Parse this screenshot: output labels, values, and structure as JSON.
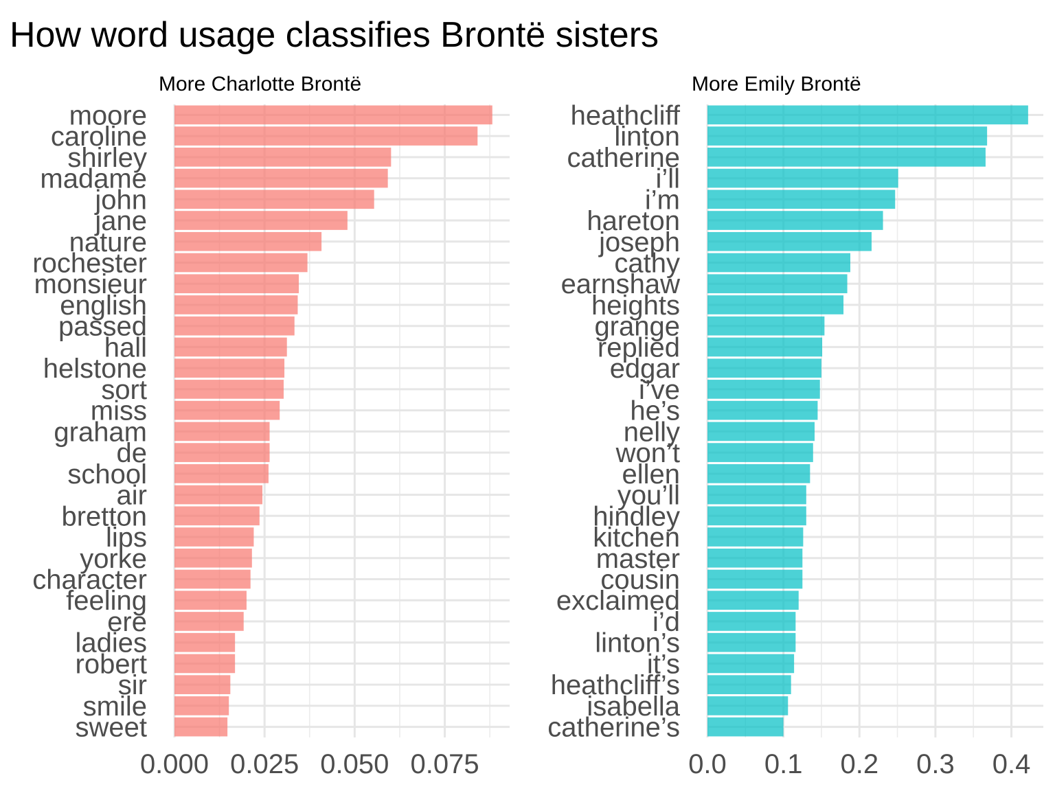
{
  "title": "How word usage classifies Brontë sisters",
  "colors": {
    "charlotte": "#F8766D",
    "emily": "#00BFC4",
    "bar_opacity": 0.7,
    "text": "#4d4d4d"
  },
  "chart_data": [
    {
      "type": "bar",
      "orientation": "horizontal",
      "title": "More Charlotte Brontë",
      "categories": [
        "moore",
        "caroline",
        "shirley",
        "madame",
        "john",
        "jane",
        "nature",
        "rochester",
        "monsieur",
        "english",
        "passed",
        "hall",
        "helstone",
        "sort",
        "miss",
        "graham",
        "de",
        "school",
        "air",
        "bretton",
        "lips",
        "yorke",
        "character",
        "feeling",
        "ere",
        "ladies",
        "robert",
        "sir",
        "smile",
        "sweet"
      ],
      "values": [
        0.0882,
        0.0841,
        0.0601,
        0.0592,
        0.0554,
        0.048,
        0.0408,
        0.0369,
        0.0345,
        0.0342,
        0.0333,
        0.0312,
        0.0305,
        0.0303,
        0.0292,
        0.0264,
        0.0264,
        0.0261,
        0.0244,
        0.0236,
        0.022,
        0.0215,
        0.0211,
        0.02,
        0.0192,
        0.0168,
        0.0168,
        0.0155,
        0.0151,
        0.0147
      ],
      "xlim": [
        0,
        0.093
      ],
      "xticks": [
        0,
        0.025,
        0.05,
        0.075
      ],
      "xtick_labels": [
        "0.000",
        "0.025",
        "0.050",
        "0.075"
      ],
      "minor_ticks": [
        0.0125,
        0.0375,
        0.0625,
        0.0875
      ],
      "grid": true,
      "color": "#F8766D"
    },
    {
      "type": "bar",
      "orientation": "horizontal",
      "title": "More Emily Brontë",
      "categories": [
        "heathcliff",
        "linton",
        "catherine",
        "i’ll",
        "i’m",
        "hareton",
        "joseph",
        "cathy",
        "earnshaw",
        "heights",
        "grange",
        "replied",
        "edgar",
        "i’ve",
        "he’s",
        "nelly",
        "won’t",
        "ellen",
        "you’ll",
        "hindley",
        "kitchen",
        "master",
        "cousin",
        "exclaimed",
        "i’d",
        "linton’s",
        "it’s",
        "heathcliff’s",
        "isabella",
        "catherine’s"
      ],
      "values": [
        0.422,
        0.368,
        0.366,
        0.251,
        0.247,
        0.231,
        0.216,
        0.188,
        0.184,
        0.179,
        0.154,
        0.151,
        0.15,
        0.148,
        0.145,
        0.141,
        0.139,
        0.135,
        0.13,
        0.13,
        0.126,
        0.125,
        0.125,
        0.12,
        0.116,
        0.116,
        0.114,
        0.11,
        0.106,
        0.1
      ],
      "xlim": [
        0,
        0.442
      ],
      "xticks": [
        0,
        0.1,
        0.2,
        0.3,
        0.4
      ],
      "xtick_labels": [
        "0.0",
        "0.1",
        "0.2",
        "0.3",
        "0.4"
      ],
      "minor_ticks": [
        0.05,
        0.15,
        0.25,
        0.35
      ],
      "grid": true,
      "color": "#00BFC4"
    }
  ]
}
